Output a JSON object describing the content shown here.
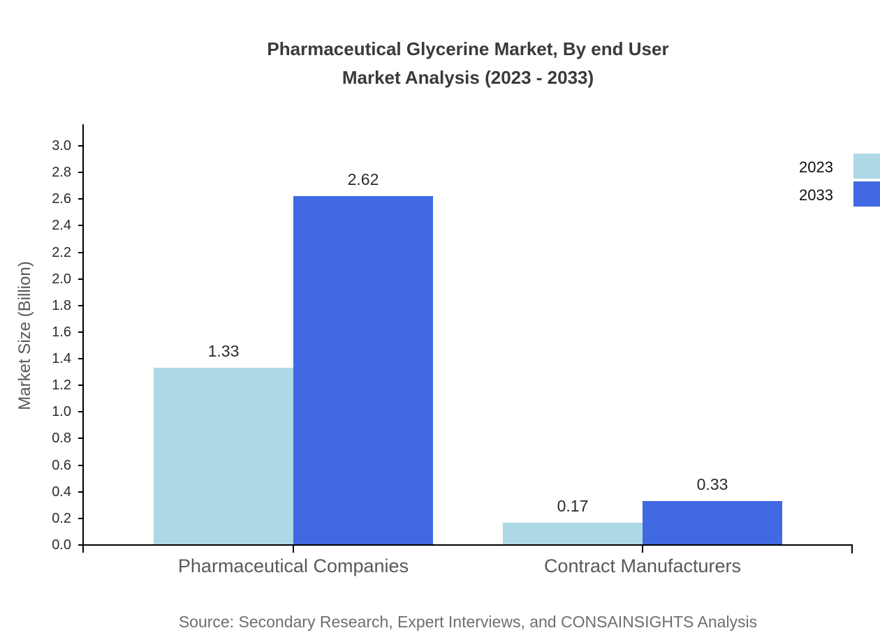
{
  "title": {
    "line1": "Pharmaceutical Glycerine Market, By end User",
    "line2": "Market Analysis (2023 - 2033)"
  },
  "source": "Source: Secondary Research, Expert Interviews, and CONSAINSIGHTS Analysis",
  "chart_data": {
    "type": "bar",
    "title": "Pharmaceutical Glycerine Market, By end User Market Analysis (2023 - 2033)",
    "categories": [
      "Pharmaceutical Companies",
      "Contract Manufacturers"
    ],
    "series": [
      {
        "name": "2023",
        "color": "#ADD8E6",
        "values": [
          1.33,
          0.17
        ]
      },
      {
        "name": "2033",
        "color": "#4169E1",
        "values": [
          2.62,
          0.33
        ]
      }
    ],
    "xlabel": "",
    "ylabel": "Market Size (Billion)",
    "ylim": [
      0,
      3.0
    ],
    "ytick_step": 0.2,
    "grid": false,
    "legend_position": "top-right",
    "value_label_format": "2dp",
    "axis_color": "#000000"
  }
}
